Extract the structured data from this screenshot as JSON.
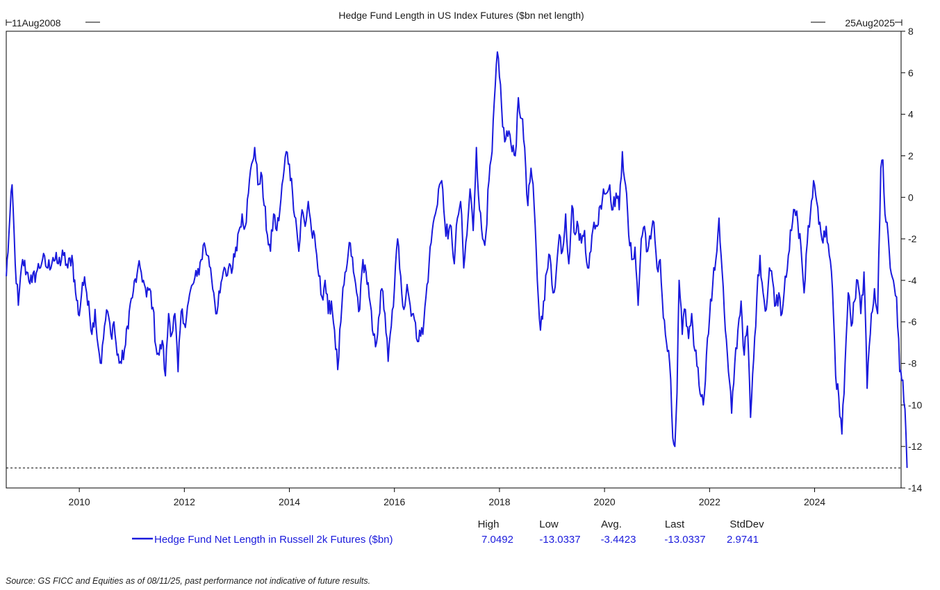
{
  "chart_data": {
    "type": "line",
    "title": "Hedge Fund Length in US Index Futures ($bn net length)",
    "start_label": "11Aug2008",
    "end_label": "25Aug2025",
    "x_range": [
      "2008-08-11",
      "2025-08-25"
    ],
    "ylim": [
      -14,
      8
    ],
    "y_ticks": [
      "8",
      "6",
      "4",
      "2",
      "0",
      "-2",
      "-4",
      "-6",
      "-8",
      "-10",
      "-12",
      "-14"
    ],
    "x_ticks": [
      "2010",
      "2012",
      "2014",
      "2016",
      "2018",
      "2020",
      "2022",
      "2024"
    ],
    "y_axis_side": "right",
    "grid": false,
    "reference_line": {
      "y": -13.0337,
      "style": "dashed"
    },
    "colors": {
      "series": "#1a1adc",
      "axis": "#000000"
    },
    "series": [
      {
        "name": "Hedge Fund Net Length in Russell 2k Futures ($bn)",
        "points": [
          [
            2008.61,
            -3.8
          ],
          [
            2008.66,
            -1.8
          ],
          [
            2008.72,
            0.6
          ],
          [
            2008.78,
            -3.2
          ],
          [
            2008.84,
            -5.2
          ],
          [
            2008.92,
            -3.0
          ],
          [
            2009.0,
            -3.6
          ],
          [
            2009.1,
            -4.1
          ],
          [
            2009.2,
            -3.5
          ],
          [
            2009.3,
            -3.0
          ],
          [
            2009.4,
            -3.4
          ],
          [
            2009.5,
            -2.9
          ],
          [
            2009.6,
            -3.2
          ],
          [
            2009.7,
            -2.8
          ],
          [
            2009.78,
            -3.4
          ],
          [
            2009.86,
            -2.8
          ],
          [
            2009.93,
            -4.6
          ],
          [
            2010.0,
            -5.7
          ],
          [
            2010.06,
            -4.1
          ],
          [
            2010.12,
            -4.3
          ],
          [
            2010.18,
            -5.0
          ],
          [
            2010.24,
            -6.6
          ],
          [
            2010.3,
            -5.4
          ],
          [
            2010.36,
            -7.2
          ],
          [
            2010.42,
            -8.0
          ],
          [
            2010.48,
            -6.2
          ],
          [
            2010.54,
            -5.5
          ],
          [
            2010.6,
            -6.6
          ],
          [
            2010.66,
            -6.0
          ],
          [
            2010.72,
            -7.6
          ],
          [
            2010.8,
            -8.0
          ],
          [
            2010.88,
            -7.1
          ],
          [
            2010.95,
            -5.5
          ],
          [
            2011.03,
            -4.5
          ],
          [
            2011.1,
            -3.7
          ],
          [
            2011.16,
            -3.4
          ],
          [
            2011.22,
            -4.0
          ],
          [
            2011.28,
            -4.8
          ],
          [
            2011.34,
            -4.4
          ],
          [
            2011.4,
            -5.3
          ],
          [
            2011.46,
            -7.2
          ],
          [
            2011.52,
            -7.6
          ],
          [
            2011.58,
            -6.9
          ],
          [
            2011.64,
            -8.6
          ],
          [
            2011.7,
            -5.6
          ],
          [
            2011.76,
            -6.6
          ],
          [
            2011.82,
            -5.6
          ],
          [
            2011.88,
            -8.4
          ],
          [
            2011.94,
            -5.5
          ],
          [
            2012.0,
            -6.1
          ],
          [
            2012.08,
            -5.0
          ],
          [
            2012.16,
            -4.2
          ],
          [
            2012.24,
            -3.8
          ],
          [
            2012.32,
            -3.0
          ],
          [
            2012.38,
            -2.2
          ],
          [
            2012.44,
            -2.8
          ],
          [
            2012.5,
            -3.4
          ],
          [
            2012.56,
            -4.6
          ],
          [
            2012.62,
            -5.6
          ],
          [
            2012.68,
            -4.6
          ],
          [
            2012.74,
            -3.6
          ],
          [
            2012.8,
            -3.8
          ],
          [
            2012.86,
            -3.2
          ],
          [
            2012.92,
            -3.4
          ],
          [
            2012.98,
            -2.4
          ],
          [
            2013.04,
            -1.6
          ],
          [
            2013.1,
            -0.8
          ],
          [
            2013.16,
            -1.4
          ],
          [
            2013.22,
            0.2
          ],
          [
            2013.28,
            1.6
          ],
          [
            2013.34,
            2.4
          ],
          [
            2013.4,
            0.6
          ],
          [
            2013.46,
            1.2
          ],
          [
            2013.52,
            -0.4
          ],
          [
            2013.58,
            -1.8
          ],
          [
            2013.64,
            -2.6
          ],
          [
            2013.7,
            -0.8
          ],
          [
            2013.76,
            -1.6
          ],
          [
            2013.82,
            -0.6
          ],
          [
            2013.88,
            0.9
          ],
          [
            2013.94,
            2.2
          ],
          [
            2014.0,
            1.6
          ],
          [
            2014.06,
            0.2
          ],
          [
            2014.12,
            -1.0
          ],
          [
            2014.18,
            -2.6
          ],
          [
            2014.24,
            -0.6
          ],
          [
            2014.3,
            -1.4
          ],
          [
            2014.36,
            -0.2
          ],
          [
            2014.42,
            -1.6
          ],
          [
            2014.5,
            -2.4
          ],
          [
            2014.56,
            -3.8
          ],
          [
            2014.62,
            -4.8
          ],
          [
            2014.68,
            -4.0
          ],
          [
            2014.74,
            -5.6
          ],
          [
            2014.8,
            -5.0
          ],
          [
            2014.86,
            -6.4
          ],
          [
            2014.92,
            -8.3
          ],
          [
            2014.98,
            -6.0
          ],
          [
            2015.04,
            -4.2
          ],
          [
            2015.1,
            -3.2
          ],
          [
            2015.16,
            -2.2
          ],
          [
            2015.22,
            -3.6
          ],
          [
            2015.28,
            -4.6
          ],
          [
            2015.34,
            -5.4
          ],
          [
            2015.4,
            -3.0
          ],
          [
            2015.46,
            -3.6
          ],
          [
            2015.52,
            -4.8
          ],
          [
            2015.58,
            -6.4
          ],
          [
            2015.64,
            -7.2
          ],
          [
            2015.7,
            -5.8
          ],
          [
            2015.76,
            -4.4
          ],
          [
            2015.82,
            -5.6
          ],
          [
            2015.88,
            -7.9
          ],
          [
            2015.94,
            -6.2
          ],
          [
            2016.0,
            -4.4
          ],
          [
            2016.06,
            -2.0
          ],
          [
            2016.12,
            -3.8
          ],
          [
            2016.18,
            -5.4
          ],
          [
            2016.24,
            -4.2
          ],
          [
            2016.3,
            -5.2
          ],
          [
            2016.36,
            -5.6
          ],
          [
            2016.42,
            -6.8
          ],
          [
            2016.48,
            -6.4
          ],
          [
            2016.54,
            -6.6
          ],
          [
            2016.6,
            -4.8
          ],
          [
            2016.66,
            -3.2
          ],
          [
            2016.72,
            -1.6
          ],
          [
            2016.78,
            -0.8
          ],
          [
            2016.84,
            0.4
          ],
          [
            2016.9,
            0.8
          ],
          [
            2016.96,
            -1.2
          ],
          [
            2017.02,
            -2.0
          ],
          [
            2017.08,
            -1.4
          ],
          [
            2017.14,
            -3.2
          ],
          [
            2017.2,
            -1.0
          ],
          [
            2017.26,
            -0.2
          ],
          [
            2017.32,
            -3.4
          ],
          [
            2017.38,
            -1.8
          ],
          [
            2017.44,
            0.4
          ],
          [
            2017.5,
            -1.6
          ],
          [
            2017.56,
            2.4
          ],
          [
            2017.62,
            -0.6
          ],
          [
            2017.68,
            -2.0
          ],
          [
            2017.74,
            -1.8
          ],
          [
            2017.8,
            0.8
          ],
          [
            2017.86,
            2.2
          ],
          [
            2017.92,
            5.4
          ],
          [
            2017.96,
            7.0
          ],
          [
            2018.0,
            5.8
          ],
          [
            2018.06,
            3.4
          ],
          [
            2018.12,
            2.8
          ],
          [
            2018.18,
            3.2
          ],
          [
            2018.24,
            2.2
          ],
          [
            2018.3,
            2.0
          ],
          [
            2018.36,
            4.8
          ],
          [
            2018.42,
            3.8
          ],
          [
            2018.48,
            2.4
          ],
          [
            2018.54,
            -0.4
          ],
          [
            2018.6,
            1.4
          ],
          [
            2018.66,
            -0.4
          ],
          [
            2018.72,
            -4.0
          ],
          [
            2018.78,
            -6.4
          ],
          [
            2018.84,
            -5.0
          ],
          [
            2018.9,
            -3.6
          ],
          [
            2018.96,
            -2.8
          ],
          [
            2019.02,
            -4.6
          ],
          [
            2019.08,
            -3.6
          ],
          [
            2019.14,
            -1.8
          ],
          [
            2019.2,
            -2.6
          ],
          [
            2019.26,
            -0.8
          ],
          [
            2019.32,
            -3.2
          ],
          [
            2019.38,
            -0.4
          ],
          [
            2019.44,
            -1.8
          ],
          [
            2019.5,
            -1.4
          ],
          [
            2019.56,
            -2.2
          ],
          [
            2019.62,
            -1.6
          ],
          [
            2019.68,
            -3.4
          ],
          [
            2019.74,
            -2.6
          ],
          [
            2019.8,
            -1.2
          ],
          [
            2019.86,
            -1.4
          ],
          [
            2019.92,
            -0.4
          ],
          [
            2019.98,
            0.4
          ],
          [
            2020.04,
            0.2
          ],
          [
            2020.1,
            0.6
          ],
          [
            2020.16,
            -0.6
          ],
          [
            2020.22,
            0.2
          ],
          [
            2020.28,
            -0.6
          ],
          [
            2020.34,
            2.2
          ],
          [
            2020.4,
            0.6
          ],
          [
            2020.46,
            -1.8
          ],
          [
            2020.52,
            -3.0
          ],
          [
            2020.58,
            -2.4
          ],
          [
            2020.64,
            -5.2
          ],
          [
            2020.7,
            -2.0
          ],
          [
            2020.76,
            -1.4
          ],
          [
            2020.82,
            -2.6
          ],
          [
            2020.88,
            -2.0
          ],
          [
            2020.94,
            -1.2
          ],
          [
            2021.0,
            -3.4
          ],
          [
            2021.06,
            -3.0
          ],
          [
            2021.12,
            -5.8
          ],
          [
            2021.18,
            -7.0
          ],
          [
            2021.24,
            -8.0
          ],
          [
            2021.3,
            -11.6
          ],
          [
            2021.34,
            -12.0
          ],
          [
            2021.38,
            -9.4
          ],
          [
            2021.42,
            -4.0
          ],
          [
            2021.48,
            -6.6
          ],
          [
            2021.54,
            -5.4
          ],
          [
            2021.6,
            -6.8
          ],
          [
            2021.66,
            -5.6
          ],
          [
            2021.72,
            -7.4
          ],
          [
            2021.78,
            -8.2
          ],
          [
            2021.84,
            -9.6
          ],
          [
            2021.88,
            -10.0
          ],
          [
            2021.94,
            -7.6
          ],
          [
            2022.0,
            -5.8
          ],
          [
            2022.06,
            -4.2
          ],
          [
            2022.12,
            -3.0
          ],
          [
            2022.18,
            -1.0
          ],
          [
            2022.24,
            -3.6
          ],
          [
            2022.3,
            -6.4
          ],
          [
            2022.36,
            -8.4
          ],
          [
            2022.42,
            -10.4
          ],
          [
            2022.48,
            -8.0
          ],
          [
            2022.54,
            -6.4
          ],
          [
            2022.6,
            -5.0
          ],
          [
            2022.66,
            -7.6
          ],
          [
            2022.72,
            -6.2
          ],
          [
            2022.78,
            -10.6
          ],
          [
            2022.84,
            -7.8
          ],
          [
            2022.9,
            -4.8
          ],
          [
            2022.96,
            -2.8
          ],
          [
            2023.02,
            -4.6
          ],
          [
            2023.08,
            -5.4
          ],
          [
            2023.14,
            -3.4
          ],
          [
            2023.2,
            -4.0
          ],
          [
            2023.26,
            -5.2
          ],
          [
            2023.32,
            -4.6
          ],
          [
            2023.38,
            -5.6
          ],
          [
            2023.44,
            -3.8
          ],
          [
            2023.5,
            -2.8
          ],
          [
            2023.56,
            -1.6
          ],
          [
            2023.62,
            -0.6
          ],
          [
            2023.68,
            -1.2
          ],
          [
            2023.74,
            -2.4
          ],
          [
            2023.8,
            -4.6
          ],
          [
            2023.86,
            -2.2
          ],
          [
            2023.92,
            -0.8
          ],
          [
            2023.98,
            0.8
          ],
          [
            2024.04,
            -0.2
          ],
          [
            2024.1,
            -1.2
          ],
          [
            2024.16,
            -2.2
          ],
          [
            2024.22,
            -1.4
          ],
          [
            2024.28,
            -2.8
          ],
          [
            2024.34,
            -4.4
          ],
          [
            2024.4,
            -8.6
          ],
          [
            2024.46,
            -9.6
          ],
          [
            2024.52,
            -11.4
          ],
          [
            2024.58,
            -8.0
          ],
          [
            2024.64,
            -4.6
          ],
          [
            2024.7,
            -6.2
          ],
          [
            2024.76,
            -5.0
          ],
          [
            2024.82,
            -4.0
          ],
          [
            2024.88,
            -5.6
          ],
          [
            2024.94,
            -3.6
          ],
          [
            2025.0,
            -9.2
          ],
          [
            2025.04,
            -7.2
          ],
          [
            2025.08,
            -5.6
          ],
          [
            2025.14,
            -4.4
          ],
          [
            2025.2,
            -5.6
          ],
          [
            2025.26,
            1.4
          ],
          [
            2025.3,
            1.8
          ],
          [
            2025.34,
            -0.8
          ],
          [
            2025.38,
            -1.2
          ],
          [
            2025.44,
            -3.4
          ],
          [
            2025.5,
            -4.0
          ],
          [
            2025.56,
            -4.8
          ],
          [
            2025.62,
            -8.4
          ],
          [
            2025.68,
            -8.8
          ],
          [
            2025.72,
            -10.2
          ],
          [
            2025.76,
            -13.0337
          ]
        ]
      }
    ],
    "legend": {
      "placement": "bottom",
      "label": "Hedge Fund Net Length in Russell 2k Futures ($bn)",
      "stats": [
        {
          "header": "High",
          "value": "7.0492"
        },
        {
          "header": "Low",
          "value": "-13.0337"
        },
        {
          "header": "Avg.",
          "value": "-3.4423"
        },
        {
          "header": "Last",
          "value": "-13.0337"
        },
        {
          "header": "StdDev",
          "value": "2.9741"
        }
      ]
    }
  },
  "footer": {
    "source": "Source: GS FICC and Equities as of 08/11/25, past performance not indicative of future results."
  }
}
